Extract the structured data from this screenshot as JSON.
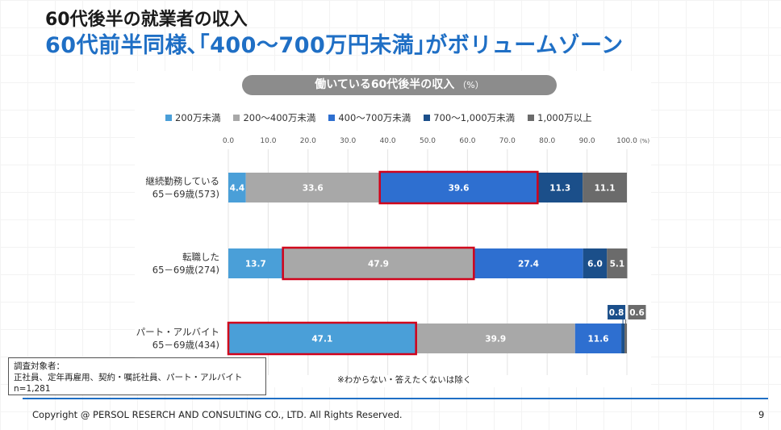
{
  "header": {
    "title": "60代後半の就業者の収入",
    "subtitle": "60代前半同様､｢400～700万円未満｣がボリュームゾーン"
  },
  "chart_data": {
    "type": "bar",
    "orientation": "horizontal-stacked-100",
    "title": "働いている60代後半の収入",
    "title_unit": "（%）",
    "axis_unit": "(%)",
    "xlim": [
      0,
      100
    ],
    "ticks": [
      "0.0",
      "10.0",
      "20.0",
      "30.0",
      "40.0",
      "50.0",
      "60.0",
      "70.0",
      "80.0",
      "90.0",
      "100.0"
    ],
    "categories": [
      {
        "line1": "継続勤務している",
        "line2": "65－69歳(573)"
      },
      {
        "line1": "転職した",
        "line2": "65－69歳(274)"
      },
      {
        "line1": "パート・アルバイト",
        "line2": "65－69歳(434)"
      }
    ],
    "series": [
      {
        "name": "200万未満",
        "color": "#4a9fd8",
        "values": [
          4.4,
          13.7,
          47.1
        ]
      },
      {
        "name": "200～400万未満",
        "color": "#a8a8a8",
        "values": [
          33.6,
          47.9,
          39.9
        ]
      },
      {
        "name": "400～700万未満",
        "color": "#2e6fd0",
        "values": [
          39.6,
          27.4,
          11.6
        ]
      },
      {
        "name": "700～1,000万未満",
        "color": "#1b4f8a",
        "values": [
          11.3,
          6.0,
          0.8
        ]
      },
      {
        "name": "1,000万以上",
        "color": "#6b6b6b",
        "values": [
          11.1,
          5.1,
          0.6
        ]
      }
    ],
    "labels": [
      [
        "4.4",
        "33.6",
        "39.6",
        "11.3",
        "11.1"
      ],
      [
        "13.7",
        "47.9",
        "27.4",
        "6.0",
        "5.1"
      ],
      [
        "47.1",
        "39.9",
        "11.6",
        "0.8",
        "0.6"
      ]
    ],
    "highlights": [
      {
        "row": 0,
        "series": 2
      },
      {
        "row": 1,
        "series": 1
      },
      {
        "row": 2,
        "series": 0
      }
    ],
    "highlight_color": "#d0021b",
    "grid": true,
    "legend_position": "top"
  },
  "note": {
    "line1": "調査対象者：",
    "line2": "正社員、定年再雇用、契約・嘱託社員、パート・アルバイト",
    "line3": "n=1,281"
  },
  "footnote": "※わからない・答えたくないは除く",
  "footer": {
    "copyright": "Copyright @ PERSOL RESERCH AND CONSULTING CO., LTD. All Rights Reserved.",
    "page": "9"
  }
}
